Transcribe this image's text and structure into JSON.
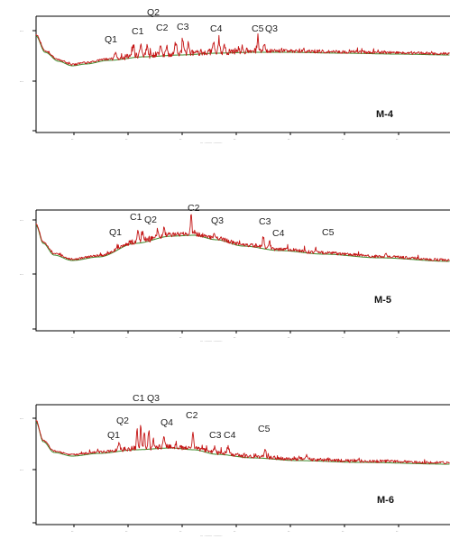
{
  "chart_data": [
    {
      "type": "line",
      "sample_label": "M-4",
      "xlabel": "",
      "ylabel": "",
      "peak_labels": [
        "Q1",
        "C1",
        "Q2",
        "C2",
        "C3",
        "C4",
        "C5",
        "Q3"
      ],
      "series": [
        {
          "role": "observed",
          "color": "#c41414"
        },
        {
          "role": "background",
          "color": "#3d8a2a"
        }
      ]
    },
    {
      "type": "line",
      "sample_label": "M-5",
      "xlabel": "",
      "ylabel": "",
      "peak_labels": [
        "Q1",
        "C1",
        "Q2",
        "C2",
        "Q3",
        "C3",
        "C4",
        "C5"
      ],
      "series": [
        {
          "role": "observed",
          "color": "#c41414"
        },
        {
          "role": "background",
          "color": "#3d8a2a"
        }
      ]
    },
    {
      "type": "line",
      "sample_label": "M-6",
      "xlabel": "",
      "ylabel": "",
      "peak_labels": [
        "Q1",
        "Q2",
        "C1",
        "Q3",
        "Q4",
        "C2",
        "C3",
        "C4",
        "C5"
      ],
      "series": [
        {
          "role": "observed",
          "color": "#c41414"
        },
        {
          "role": "background",
          "color": "#3d8a2a"
        }
      ]
    }
  ]
}
